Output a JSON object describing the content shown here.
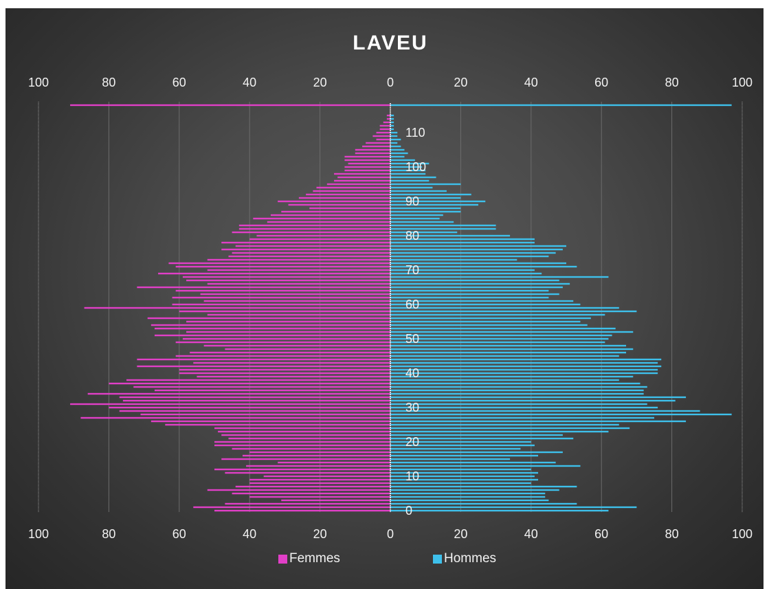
{
  "chart_data": {
    "type": "bar",
    "orientation": "horizontal",
    "subtype": "population-pyramid",
    "title": "LAVEU",
    "x_tick_labels": [
      "100",
      "80",
      "60",
      "40",
      "20",
      "0",
      "20",
      "40",
      "60",
      "80",
      "100"
    ],
    "xlim": [
      -100,
      100
    ],
    "y_tick_labels": [
      "0",
      "10",
      "20",
      "30",
      "40",
      "50",
      "60",
      "70",
      "80",
      "90",
      "100",
      "110"
    ],
    "ylim": [
      0,
      116
    ],
    "grid": true,
    "legend_position": "bottom",
    "colors": {
      "femmes": "#e13fc7",
      "hommes": "#3ec0eb",
      "background": "#464646",
      "text": "#f2f2f2"
    },
    "ages": [
      0,
      1,
      2,
      3,
      4,
      5,
      6,
      7,
      8,
      9,
      10,
      11,
      12,
      13,
      14,
      15,
      16,
      17,
      18,
      19,
      20,
      21,
      22,
      23,
      24,
      25,
      26,
      27,
      28,
      29,
      30,
      31,
      32,
      33,
      34,
      35,
      36,
      37,
      38,
      39,
      40,
      41,
      42,
      43,
      44,
      45,
      46,
      47,
      48,
      49,
      50,
      51,
      52,
      53,
      54,
      55,
      56,
      57,
      58,
      59,
      60,
      61,
      62,
      63,
      64,
      65,
      66,
      67,
      68,
      69,
      70,
      71,
      72,
      73,
      74,
      75,
      76,
      77,
      78,
      79,
      80,
      81,
      82,
      83,
      84,
      85,
      86,
      87,
      88,
      89,
      90,
      91,
      92,
      93,
      94,
      95,
      96,
      97,
      98,
      99,
      100,
      101,
      102,
      103,
      104,
      105,
      106,
      107,
      108,
      109,
      110,
      111,
      112,
      113,
      114,
      115,
      116
    ],
    "series": [
      {
        "name": "Femmes",
        "values": [
          50,
          56,
          47,
          31,
          40,
          45,
          52,
          44,
          40,
          40,
          36,
          47,
          50,
          41,
          32,
          48,
          42,
          40,
          45,
          50,
          50,
          46,
          48,
          49,
          50,
          64,
          68,
          88,
          71,
          77,
          80,
          91,
          76,
          77,
          86,
          67,
          73,
          80,
          75,
          55,
          60,
          60,
          72,
          56,
          72,
          61,
          57,
          47,
          53,
          61,
          59,
          67,
          58,
          67,
          68,
          58,
          69,
          52,
          60,
          87,
          62,
          53,
          62,
          54,
          61,
          72,
          52,
          58,
          59,
          66,
          52,
          61,
          63,
          52,
          46,
          45,
          48,
          44,
          48,
          40,
          38,
          45,
          43,
          43,
          35,
          39,
          34,
          31,
          23,
          29,
          32,
          26,
          24,
          22,
          21,
          18,
          16,
          15,
          16,
          13,
          13,
          12,
          13,
          13,
          10,
          10,
          8,
          7,
          4,
          5,
          4,
          3,
          3,
          2,
          1,
          1,
          91
        ],
        "values_note": "Femmes are drawn to the left of 0"
      },
      {
        "name": "Hommes",
        "values": [
          62,
          70,
          53,
          45,
          44,
          44,
          48,
          53,
          40,
          42,
          41,
          42,
          40,
          54,
          47,
          34,
          42,
          49,
          37,
          41,
          40,
          52,
          49,
          62,
          68,
          65,
          84,
          75,
          97,
          88,
          76,
          73,
          81,
          84,
          72,
          72,
          73,
          71,
          65,
          69,
          76,
          76,
          77,
          76,
          77,
          65,
          67,
          69,
          67,
          61,
          62,
          63,
          69,
          64,
          56,
          54,
          57,
          61,
          70,
          65,
          54,
          52,
          45,
          48,
          45,
          49,
          51,
          48,
          62,
          43,
          41,
          53,
          50,
          36,
          45,
          47,
          49,
          50,
          41,
          41,
          34,
          19,
          30,
          30,
          18,
          14,
          15,
          20,
          20,
          25,
          27,
          20,
          23,
          16,
          12,
          20,
          11,
          13,
          10,
          10,
          9,
          11,
          7,
          4,
          5,
          4,
          3,
          2,
          3,
          2,
          2,
          1,
          1,
          1,
          1,
          1,
          97
        ]
      }
    ]
  },
  "legend": {
    "femmes_label": "Femmes",
    "hommes_label": "Hommes"
  }
}
